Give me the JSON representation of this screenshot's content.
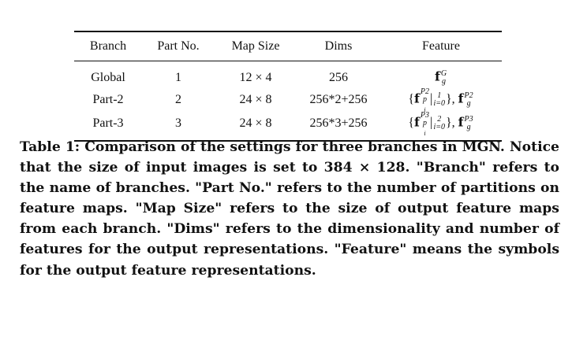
{
  "table": {
    "headers": [
      "Branch",
      "Part No.",
      "Map Size",
      "Dims",
      "Feature"
    ],
    "rows": [
      {
        "branch": "Global",
        "part_no": "1",
        "map_size": "12 × 4",
        "dims": "256",
        "feature": {
          "base": "f",
          "sup": "G",
          "sub": "g",
          "suffix": ""
        }
      },
      {
        "branch": "Part-2",
        "part_no": "2",
        "map_size": "24 × 8",
        "dims": "256*2+256",
        "feature": {
          "open": "{",
          "base": "f",
          "sup": "P2",
          "sub": "p",
          "subsub": "i",
          "bar_upper": "1",
          "bar_lower": "i=0",
          "close": "},",
          "base2": "f",
          "sup2": "P2",
          "sub2": "g"
        }
      },
      {
        "branch": "Part-3",
        "part_no": "3",
        "map_size": "24 × 8",
        "dims": "256*3+256",
        "feature": {
          "open": "{",
          "base": "f",
          "sup": "P3",
          "sub": "p",
          "subsub": "i",
          "bar_upper": "2",
          "bar_lower": "i=0",
          "close": "},",
          "base2": "f",
          "sup2": "P3",
          "sub2": "g"
        }
      }
    ]
  },
  "caption": {
    "text": "Table 1: Comparison of the settings for three branches in MGN. Notice that the size of input images is set to 384 × 128. \"Branch\" refers to the name of branches. \"Part No.\" refers to the number of partitions on feature maps. \"Map Size\" refers to the size of output feature maps from each branch. \"Dims\" refers to the dimensionality and number of features for the output representations. \"Feature\" means the symbols for the output feature representations."
  }
}
